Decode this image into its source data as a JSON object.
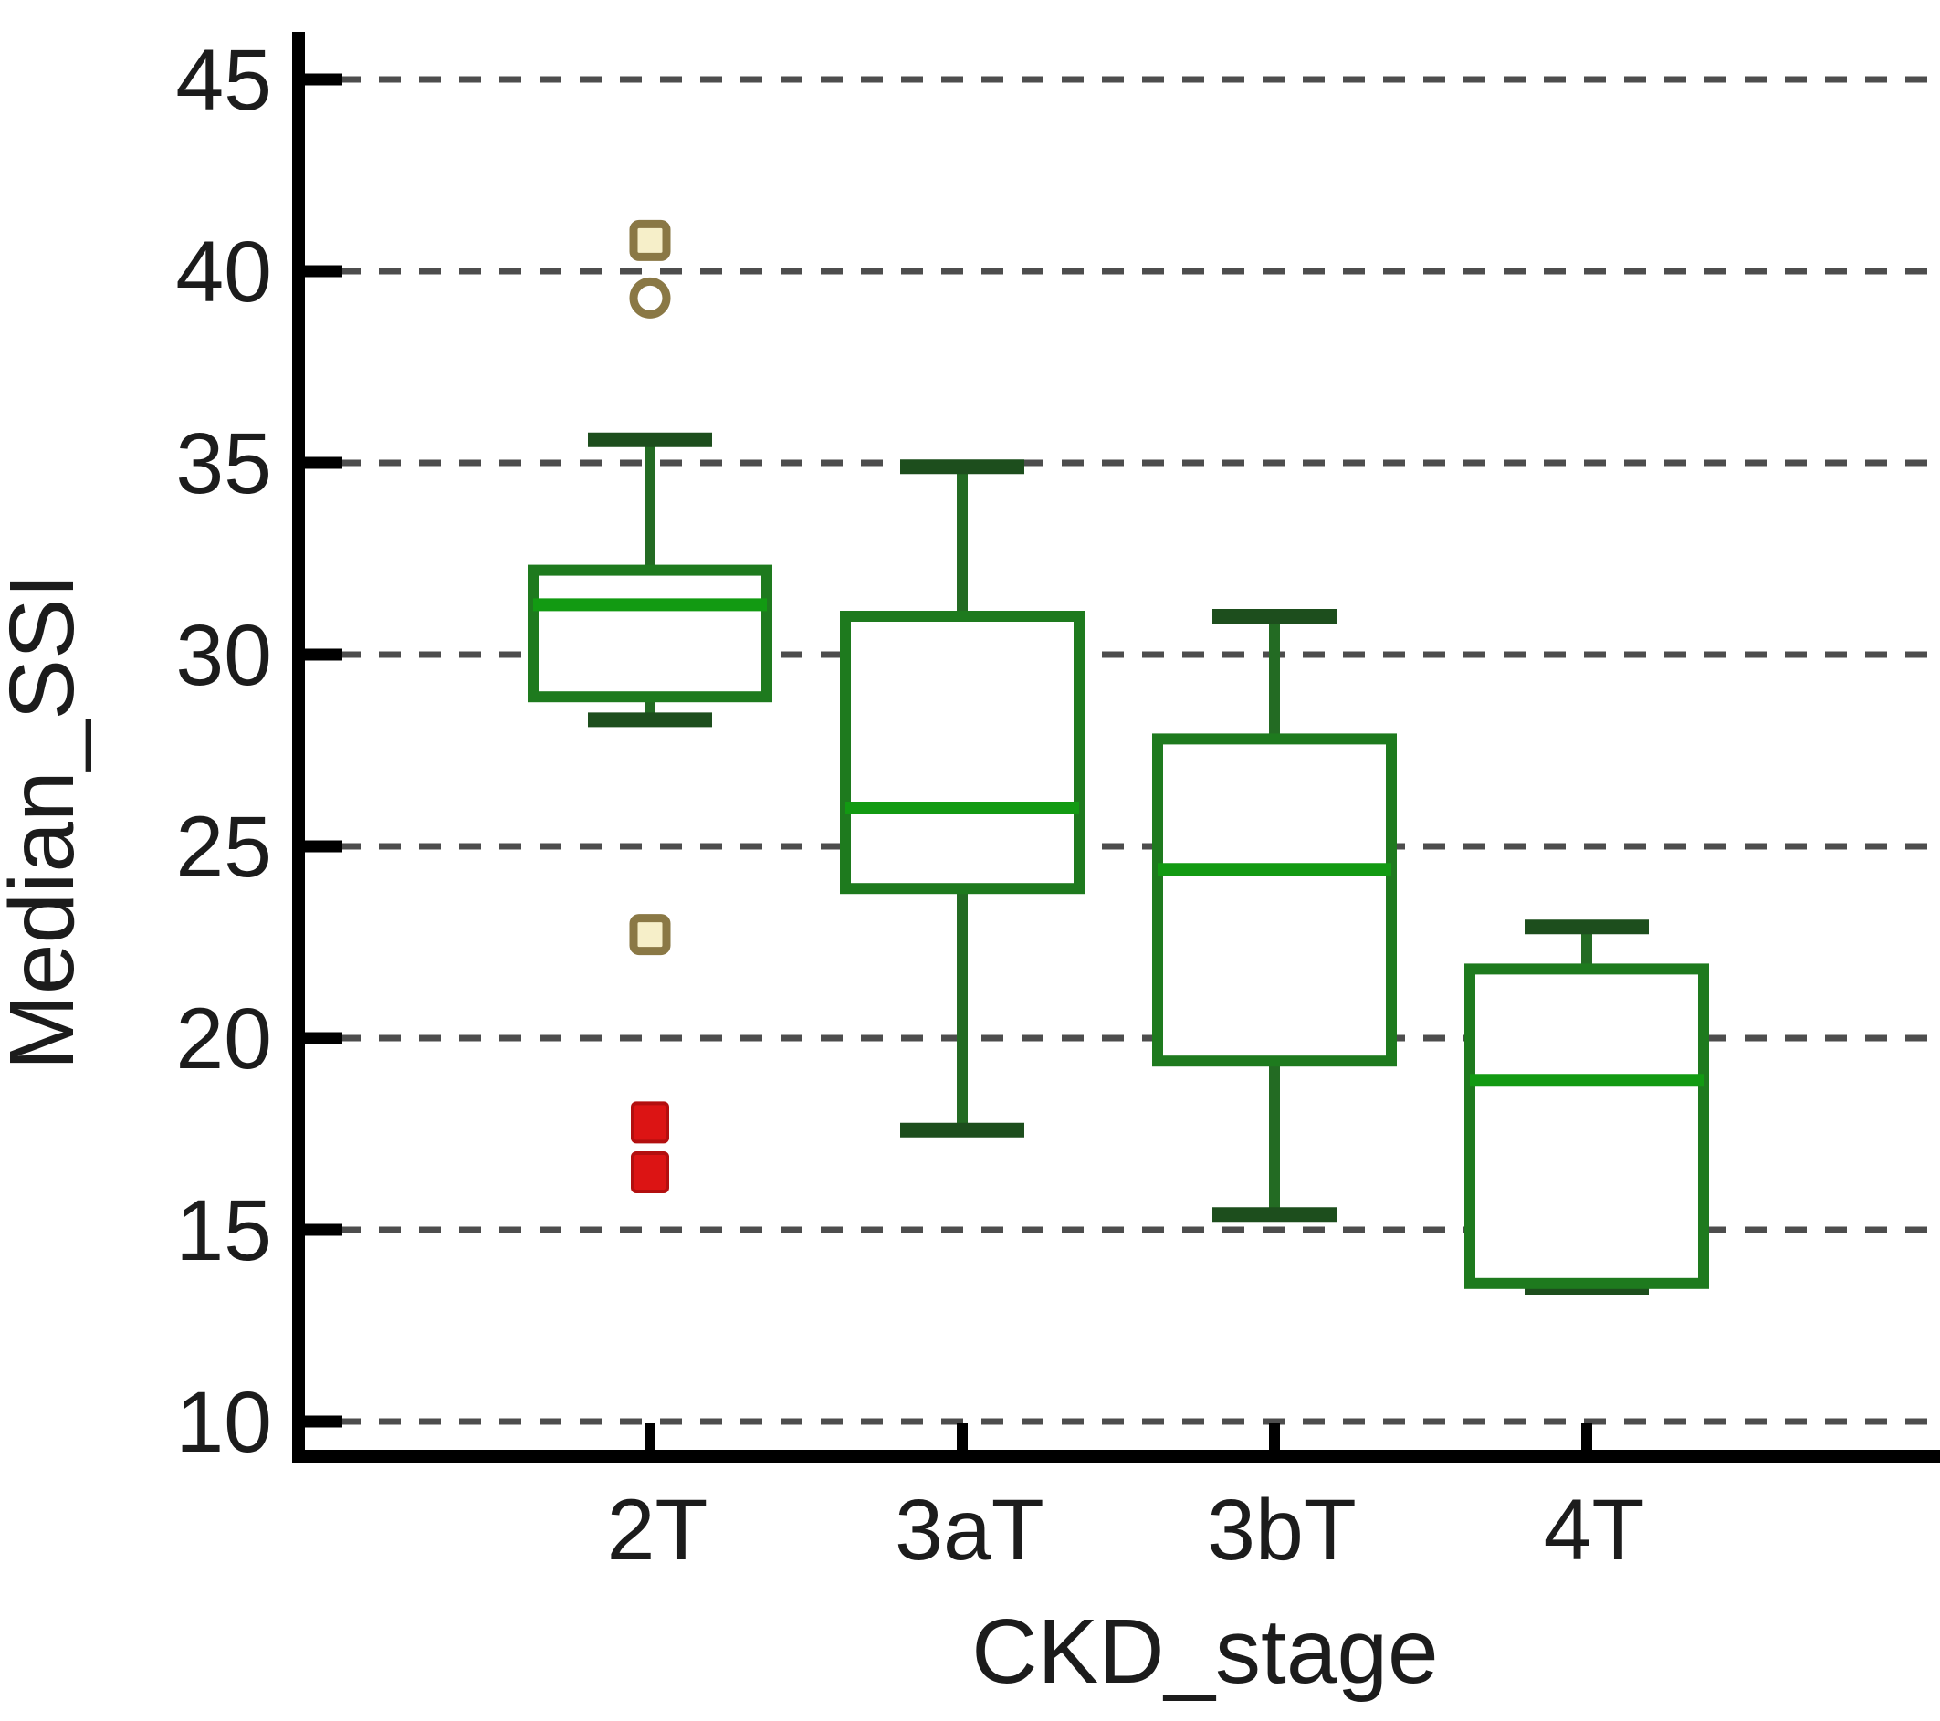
{
  "chart_data": {
    "type": "boxplot",
    "title": "",
    "xlabel": "CKD_stage",
    "ylabel": "Median_SSI",
    "categories": [
      "2T",
      "3aT",
      "3bT",
      "4T"
    ],
    "y_ticks": [
      45,
      40,
      35,
      30,
      25,
      20,
      15,
      10
    ],
    "ylim": [
      9.3,
      46.3
    ],
    "grid": {
      "axis": "y",
      "style": "dashed"
    },
    "legend": "none",
    "boxes": [
      {
        "category": "2T",
        "whisker_low": 28.3,
        "q1": 28.9,
        "median": 31.3,
        "q3": 32.2,
        "whisker_high": 35.6,
        "outliers": [
          {
            "value": 40.8,
            "marker": "open-square",
            "color_key": "tan"
          },
          {
            "value": 39.3,
            "marker": "open-circle",
            "color_key": "tan"
          },
          {
            "value": 22.7,
            "marker": "open-square",
            "color_key": "tan"
          },
          {
            "value": 17.8,
            "marker": "filled-square",
            "color_key": "red"
          },
          {
            "value": 16.5,
            "marker": "filled-square",
            "color_key": "red"
          }
        ]
      },
      {
        "category": "3aT",
        "whisker_low": 17.6,
        "q1": 23.9,
        "median": 26.0,
        "q3": 31.0,
        "whisker_high": 34.9,
        "outliers": []
      },
      {
        "category": "3bT",
        "whisker_low": 15.4,
        "q1": 19.4,
        "median": 24.4,
        "q3": 27.8,
        "whisker_high": 31.0,
        "outliers": []
      },
      {
        "category": "4T",
        "whisker_low": 13.5,
        "q1": 13.6,
        "median": 18.9,
        "q3": 21.8,
        "whisker_high": 22.9,
        "outliers": []
      }
    ],
    "colors": {
      "box_stroke": "#1e7a1e",
      "box_fill": "#ffffff",
      "median": "#129a12",
      "whisker": "#236b23",
      "cap": "#1d4e1d",
      "outlier_tan_stroke": "#8a7845",
      "outlier_tan_fill": "#f6efc9",
      "outlier_red": "#dc1414",
      "grid": "#4d4d4d",
      "axis": "#000000",
      "text": "#1c1c1c"
    }
  }
}
